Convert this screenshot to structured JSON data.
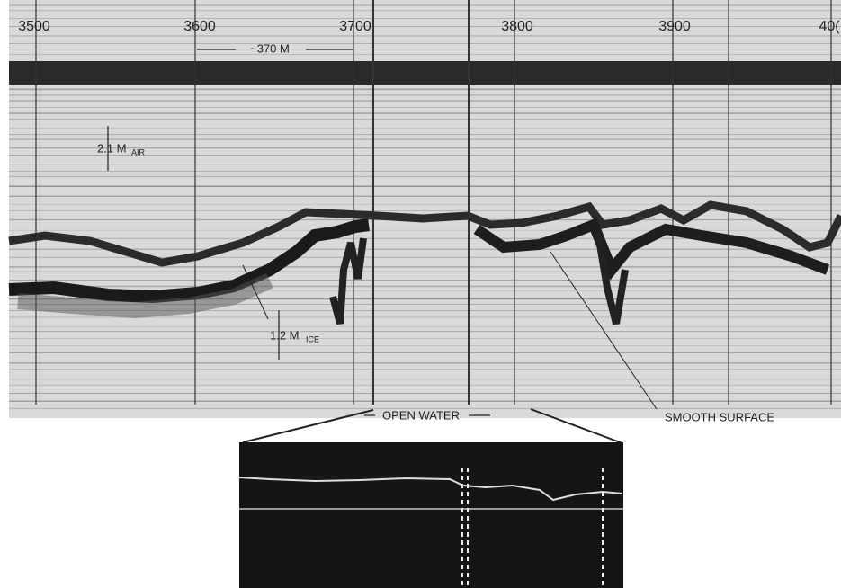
{
  "figure": {
    "distance_labels": [
      "3500",
      "3600",
      "3700",
      "3800",
      "3900",
      "40("
    ],
    "scale_bar": "~370 M",
    "air_thickness": {
      "value": "2.1 M",
      "subscript": "AIR"
    },
    "ice_thickness": {
      "value": "1.2 M",
      "subscript": "ICE"
    },
    "open_water": "OPEN WATER",
    "smooth_surface": "SMOOTH SURFACE"
  }
}
